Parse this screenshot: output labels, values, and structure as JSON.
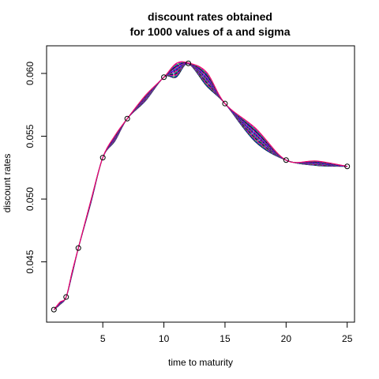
{
  "chart_data": {
    "type": "line",
    "title_lines": [
      "discount rates obtained",
      "for 1000 values of a and sigma"
    ],
    "xlabel": "time to maturity",
    "ylabel": "discount rates",
    "xlim": [
      0.4,
      25.6
    ],
    "ylim": [
      0.0402,
      0.0622
    ],
    "x_ticks": [
      5,
      10,
      15,
      20,
      25
    ],
    "x_tick_labels": [
      "5",
      "10",
      "15",
      "20",
      "25"
    ],
    "y_ticks": [
      0.045,
      0.05,
      0.055,
      0.06
    ],
    "y_tick_labels": [
      "0.045",
      "0.050",
      "0.055",
      "0.060"
    ],
    "grid": false,
    "observed_points": {
      "x": [
        1,
        2,
        3,
        5,
        7,
        10,
        12,
        15,
        20,
        25
      ],
      "y": [
        0.0412,
        0.0422,
        0.0461,
        0.0533,
        0.0564,
        0.0597,
        0.0608,
        0.0576,
        0.0531,
        0.0526
      ]
    },
    "curve_colors": [
      "#000000",
      "#0000ff",
      "#00a0a0",
      "#22aa22",
      "#cc00cc",
      "#9900cc",
      "#ff0066"
    ]
  }
}
